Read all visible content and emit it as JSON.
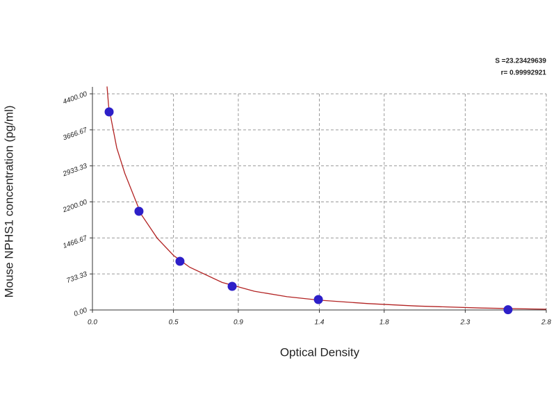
{
  "chart_data": {
    "type": "scatter",
    "annotations": [
      "S =23.23429639",
      "r= 0.99992921"
    ],
    "x_label": "Optical Density",
    "y_label": "Mouse NPHS1 concentration (pg/ml)",
    "x": [
      0.103,
      0.287,
      0.54,
      0.862,
      1.394,
      2.564
    ],
    "values": [
      4032,
      2009,
      990,
      481,
      212,
      5
    ],
    "color": "#2d1fc8",
    "fit": {
      "color": "#b22222",
      "x": [
        0.09,
        0.1,
        0.15,
        0.2,
        0.3,
        0.4,
        0.5,
        0.6,
        0.8,
        1.0,
        1.2,
        1.4,
        1.7,
        2.0,
        2.4,
        2.8
      ],
      "y": [
        4550,
        4150,
        3300,
        2780,
        1950,
        1460,
        1110,
        870,
        560,
        380,
        270,
        200,
        130,
        80,
        40,
        15
      ]
    },
    "xlim": [
      0,
      2.8
    ],
    "ylim": [
      0,
      4400
    ],
    "xticks": [
      {
        "value": 0,
        "label": "0.0"
      },
      0.5,
      0.9,
      1.4,
      1.8,
      2.3,
      2.8
    ],
    "yticks": [
      {
        "value": 0,
        "label": "0.00"
      },
      {
        "value": 733.33,
        "label": "733.33"
      },
      {
        "value": 1466.67,
        "label": "1466.67"
      },
      {
        "value": 2200,
        "label": "2200.00"
      },
      {
        "value": 2933.33,
        "label": "2933.33"
      },
      {
        "value": 3666.67,
        "label": "3666.67"
      },
      {
        "value": 4400,
        "label": "4400.00"
      }
    ],
    "grid": true
  }
}
